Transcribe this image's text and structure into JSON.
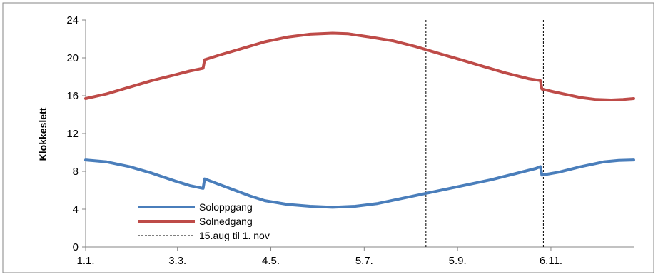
{
  "chart_data": {
    "type": "line",
    "title": "",
    "xlabel": "",
    "ylabel": "Klokkeslett",
    "ylim": [
      0,
      24
    ],
    "yticks": [
      0,
      4,
      8,
      12,
      16,
      20,
      24
    ],
    "xlim": [
      1,
      365
    ],
    "xtick_labels": [
      "1.1.",
      "3.3.",
      "4.5.",
      "5.7.",
      "5.9.",
      "6.11."
    ],
    "xtick_days": [
      1,
      62,
      124,
      186,
      248,
      310
    ],
    "grid": false,
    "legend_position": "bottom-left",
    "series": [
      {
        "name": "Soloppgang",
        "color": "#4a7ebb",
        "points": [
          [
            1,
            9.2
          ],
          [
            15,
            9.0
          ],
          [
            30,
            8.5
          ],
          [
            45,
            7.8
          ],
          [
            60,
            7.0
          ],
          [
            70,
            6.5
          ],
          [
            79,
            6.2
          ],
          [
            80,
            7.2
          ],
          [
            90,
            6.6
          ],
          [
            100,
            6.0
          ],
          [
            110,
            5.4
          ],
          [
            120,
            4.9
          ],
          [
            135,
            4.5
          ],
          [
            150,
            4.3
          ],
          [
            165,
            4.2
          ],
          [
            180,
            4.3
          ],
          [
            195,
            4.6
          ],
          [
            210,
            5.1
          ],
          [
            225,
            5.6
          ],
          [
            240,
            6.1
          ],
          [
            255,
            6.6
          ],
          [
            270,
            7.1
          ],
          [
            285,
            7.7
          ],
          [
            300,
            8.3
          ],
          [
            303,
            8.5
          ],
          [
            304,
            7.6
          ],
          [
            315,
            7.9
          ],
          [
            330,
            8.5
          ],
          [
            345,
            9.0
          ],
          [
            355,
            9.15
          ],
          [
            365,
            9.2
          ]
        ]
      },
      {
        "name": "Solnedgang",
        "color": "#be4b48",
        "points": [
          [
            1,
            15.7
          ],
          [
            15,
            16.2
          ],
          [
            30,
            16.9
          ],
          [
            45,
            17.6
          ],
          [
            60,
            18.2
          ],
          [
            70,
            18.6
          ],
          [
            79,
            18.9
          ],
          [
            80,
            19.8
          ],
          [
            90,
            20.3
          ],
          [
            105,
            21.0
          ],
          [
            120,
            21.7
          ],
          [
            135,
            22.2
          ],
          [
            150,
            22.5
          ],
          [
            165,
            22.6
          ],
          [
            175,
            22.55
          ],
          [
            190,
            22.2
          ],
          [
            205,
            21.8
          ],
          [
            220,
            21.2
          ],
          [
            235,
            20.5
          ],
          [
            250,
            19.8
          ],
          [
            265,
            19.1
          ],
          [
            280,
            18.4
          ],
          [
            295,
            17.8
          ],
          [
            303,
            17.6
          ],
          [
            304,
            16.7
          ],
          [
            315,
            16.3
          ],
          [
            330,
            15.8
          ],
          [
            340,
            15.6
          ],
          [
            350,
            15.55
          ],
          [
            358,
            15.6
          ],
          [
            365,
            15.7
          ]
        ]
      }
    ],
    "reference_lines": {
      "name": "15.aug til 1. nov",
      "color": "#000000",
      "x": [
        227,
        305
      ]
    }
  }
}
